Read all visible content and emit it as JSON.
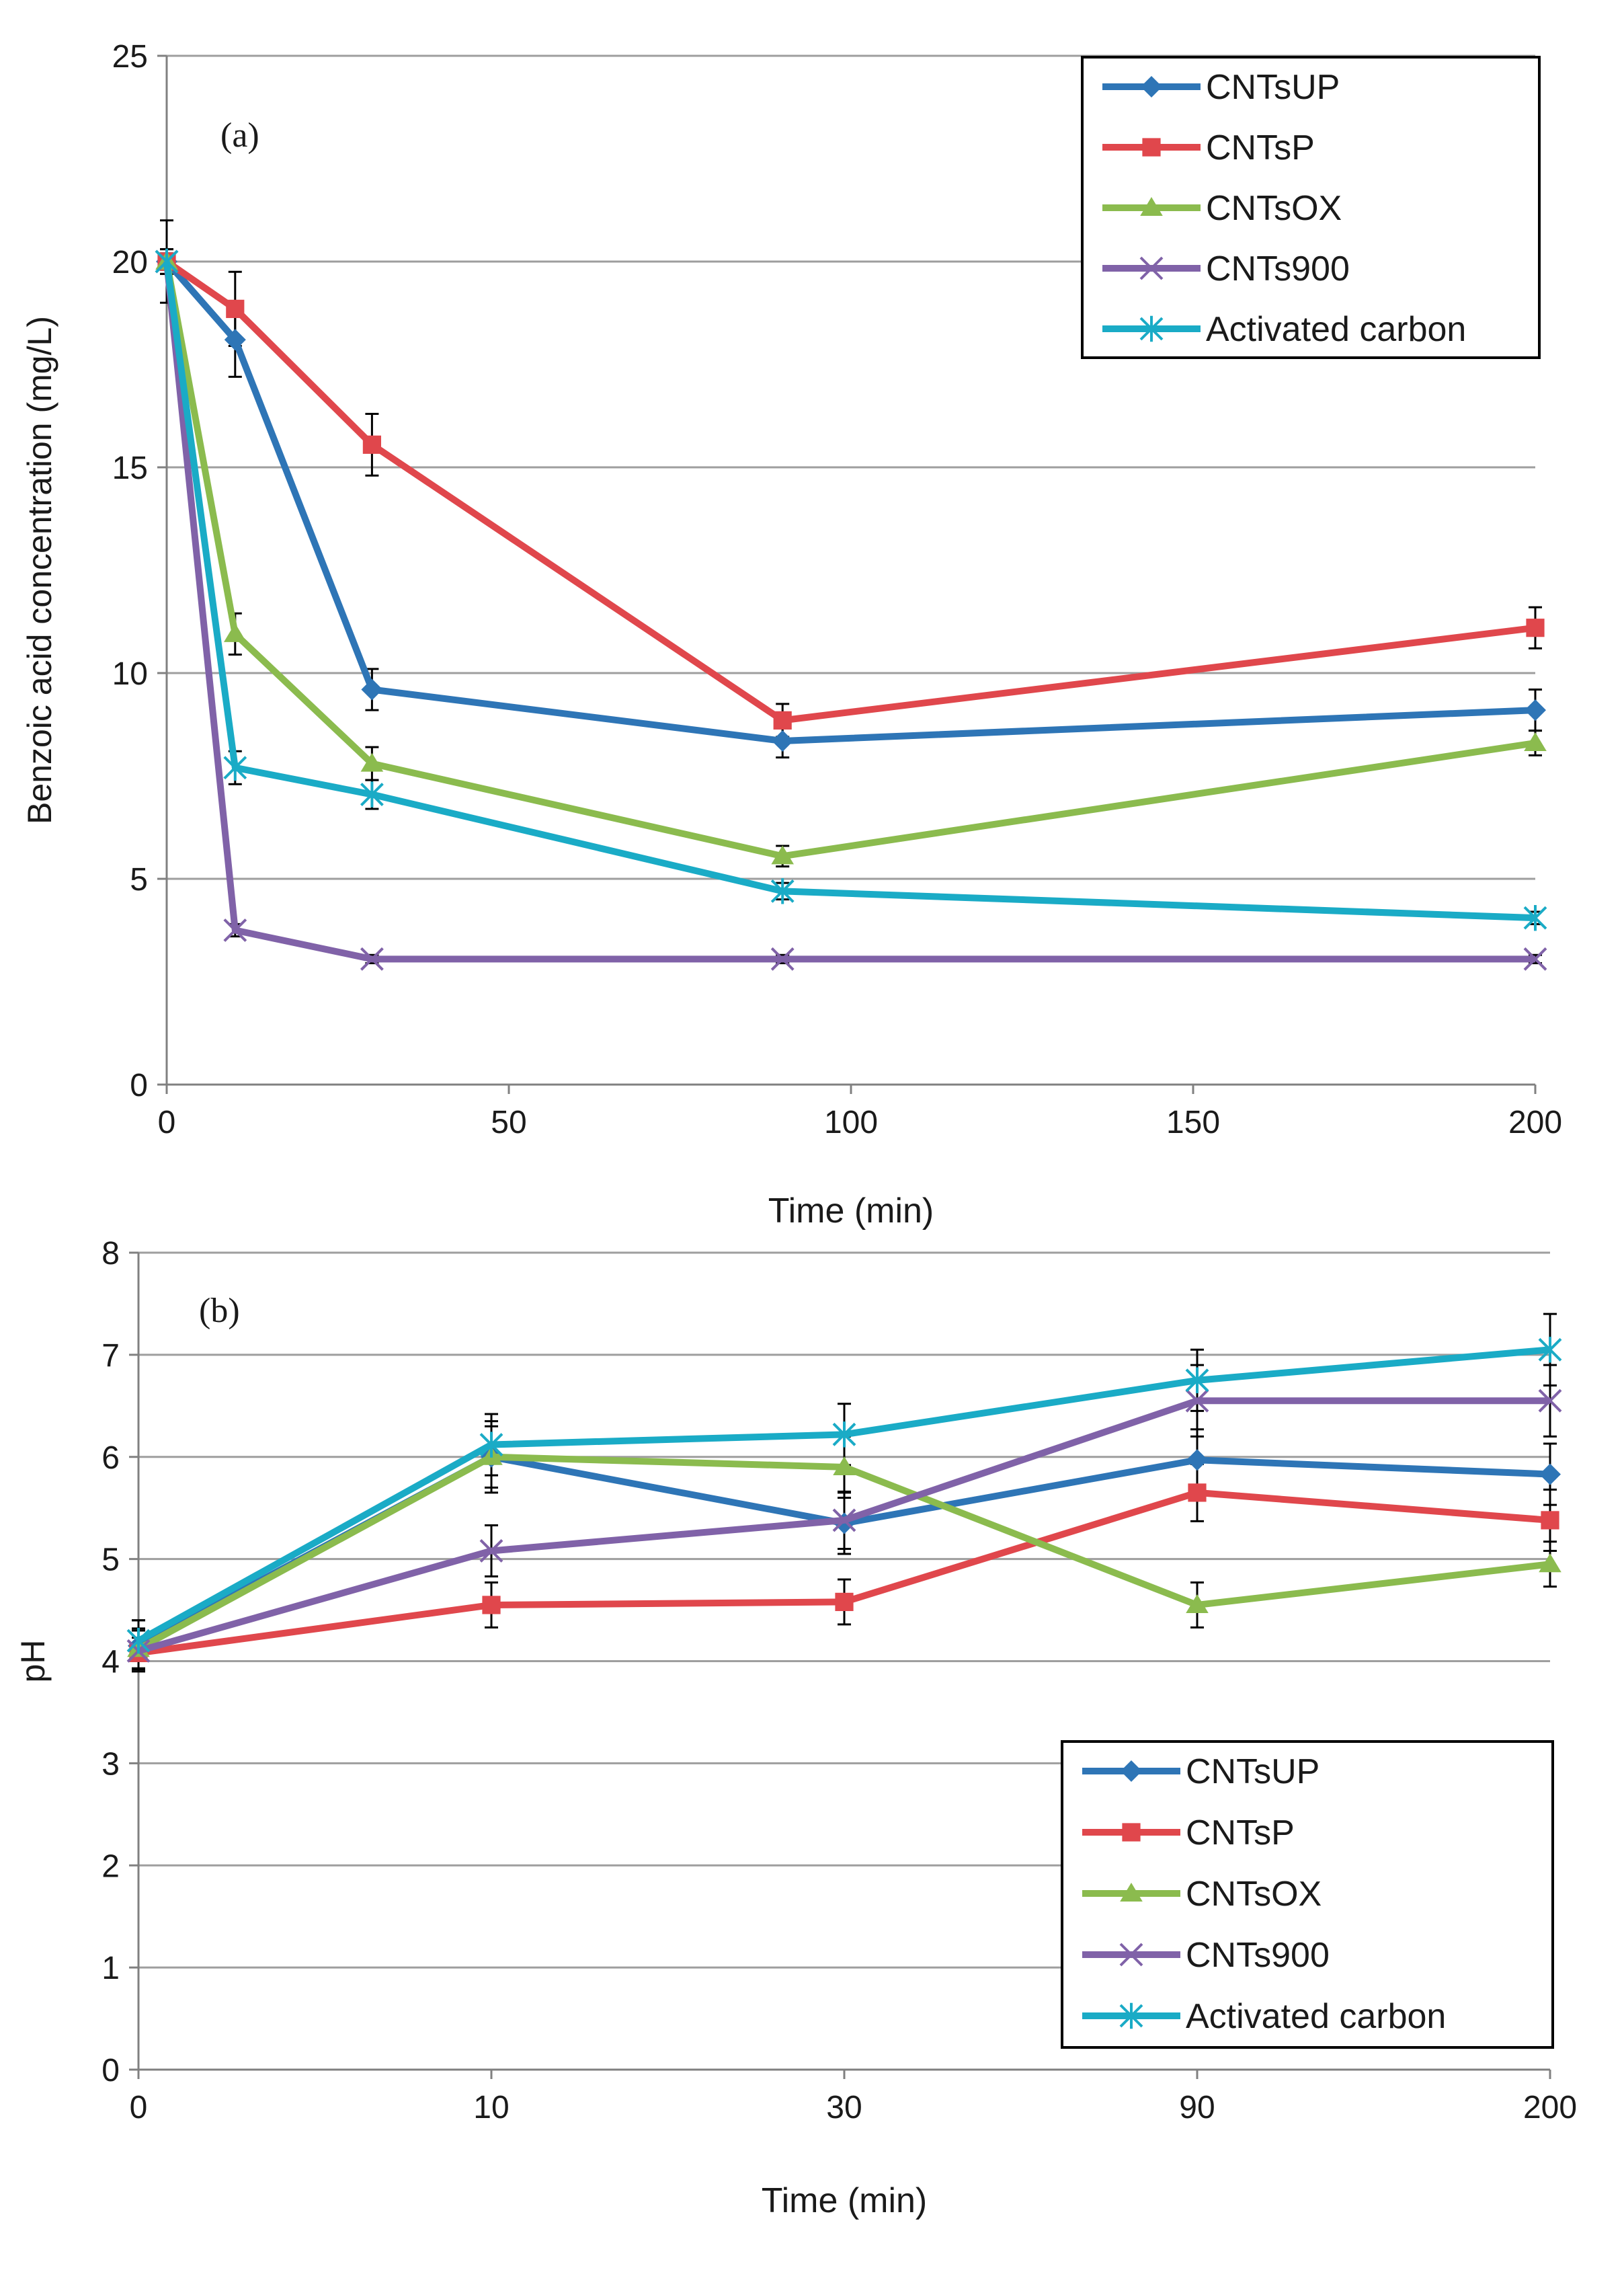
{
  "chart_data": [
    {
      "type": "line",
      "panel_label": "(a)",
      "xlabel": "Time (min)",
      "ylabel": "Benzoic acid concentration (mg/L)",
      "x_scale": "linear",
      "xlim": [
        0,
        200
      ],
      "ylim": [
        0,
        25
      ],
      "x_ticks": [
        "0",
        "50",
        "100",
        "150",
        "200"
      ],
      "y_ticks": [
        "0",
        "5",
        "10",
        "15",
        "20",
        "25"
      ],
      "grid": "horizontal",
      "legend_position": "top-right",
      "x": [
        0,
        10,
        30,
        90,
        200
      ],
      "series": [
        {
          "name": "CNTsUP",
          "color": "#2e75b6",
          "marker": "diamond",
          "values": [
            20.0,
            18.1,
            9.6,
            8.35,
            9.1
          ],
          "errors": [
            1.0,
            0.9,
            0.5,
            0.4,
            0.5
          ]
        },
        {
          "name": "CNTsP",
          "color": "#e0474c",
          "marker": "square",
          "values": [
            20.0,
            18.85,
            15.55,
            8.85,
            11.1
          ],
          "errors": [
            0.3,
            0.9,
            0.75,
            0.4,
            0.5
          ]
        },
        {
          "name": "CNTsOX",
          "color": "#8bbb4e",
          "marker": "triangle",
          "values": [
            20.0,
            10.95,
            7.8,
            5.55,
            8.3
          ],
          "errors": [
            0.3,
            0.5,
            0.4,
            0.25,
            0.3
          ]
        },
        {
          "name": "CNTs900",
          "color": "#8062a8",
          "marker": "x",
          "values": [
            20.0,
            3.75,
            3.05,
            3.05,
            3.05
          ],
          "errors": [
            0.15,
            0.15,
            0.1,
            0.1,
            0.1
          ]
        },
        {
          "name": "Activated carbon",
          "color": "#1aabc6",
          "marker": "star",
          "values": [
            20.0,
            7.7,
            7.05,
            4.7,
            4.05
          ],
          "errors": [
            0.2,
            0.4,
            0.35,
            0.2,
            0.15
          ]
        }
      ]
    },
    {
      "type": "line",
      "panel_label": "(b)",
      "xlabel": "Time (min)",
      "ylabel": "pH",
      "x_scale": "categorical",
      "categories": [
        "0",
        "10",
        "30",
        "90",
        "200"
      ],
      "ylim": [
        0,
        8
      ],
      "y_ticks": [
        "0",
        "1",
        "2",
        "3",
        "4",
        "5",
        "6",
        "7",
        "8"
      ],
      "grid": "horizontal",
      "legend_position": "bottom-right",
      "series": [
        {
          "name": "CNTsUP",
          "color": "#2e75b6",
          "marker": "diamond",
          "values": [
            4.15,
            6.0,
            5.35,
            5.97,
            5.83
          ],
          "errors": [
            0.25,
            0.35,
            0.3,
            0.3,
            0.3
          ]
        },
        {
          "name": "CNTsP",
          "color": "#e0474c",
          "marker": "square",
          "values": [
            4.08,
            4.55,
            4.58,
            5.65,
            5.38
          ],
          "errors": [
            0.15,
            0.22,
            0.22,
            0.28,
            0.3
          ]
        },
        {
          "name": "CNTsOX",
          "color": "#8bbb4e",
          "marker": "triangle",
          "values": [
            4.12,
            6.0,
            5.9,
            4.55,
            4.95
          ],
          "errors": [
            0.2,
            0.3,
            0.3,
            0.22,
            0.22
          ]
        },
        {
          "name": "CNTs900",
          "color": "#8062a8",
          "marker": "x",
          "values": [
            4.1,
            5.08,
            5.38,
            6.55,
            6.55
          ],
          "errors": [
            0.2,
            0.25,
            0.28,
            0.35,
            0.35
          ]
        },
        {
          "name": "Activated carbon",
          "color": "#1aabc6",
          "marker": "star",
          "values": [
            4.2,
            6.12,
            6.22,
            6.75,
            7.05
          ],
          "errors": [
            0.2,
            0.3,
            0.3,
            0.3,
            0.35
          ]
        }
      ]
    }
  ]
}
